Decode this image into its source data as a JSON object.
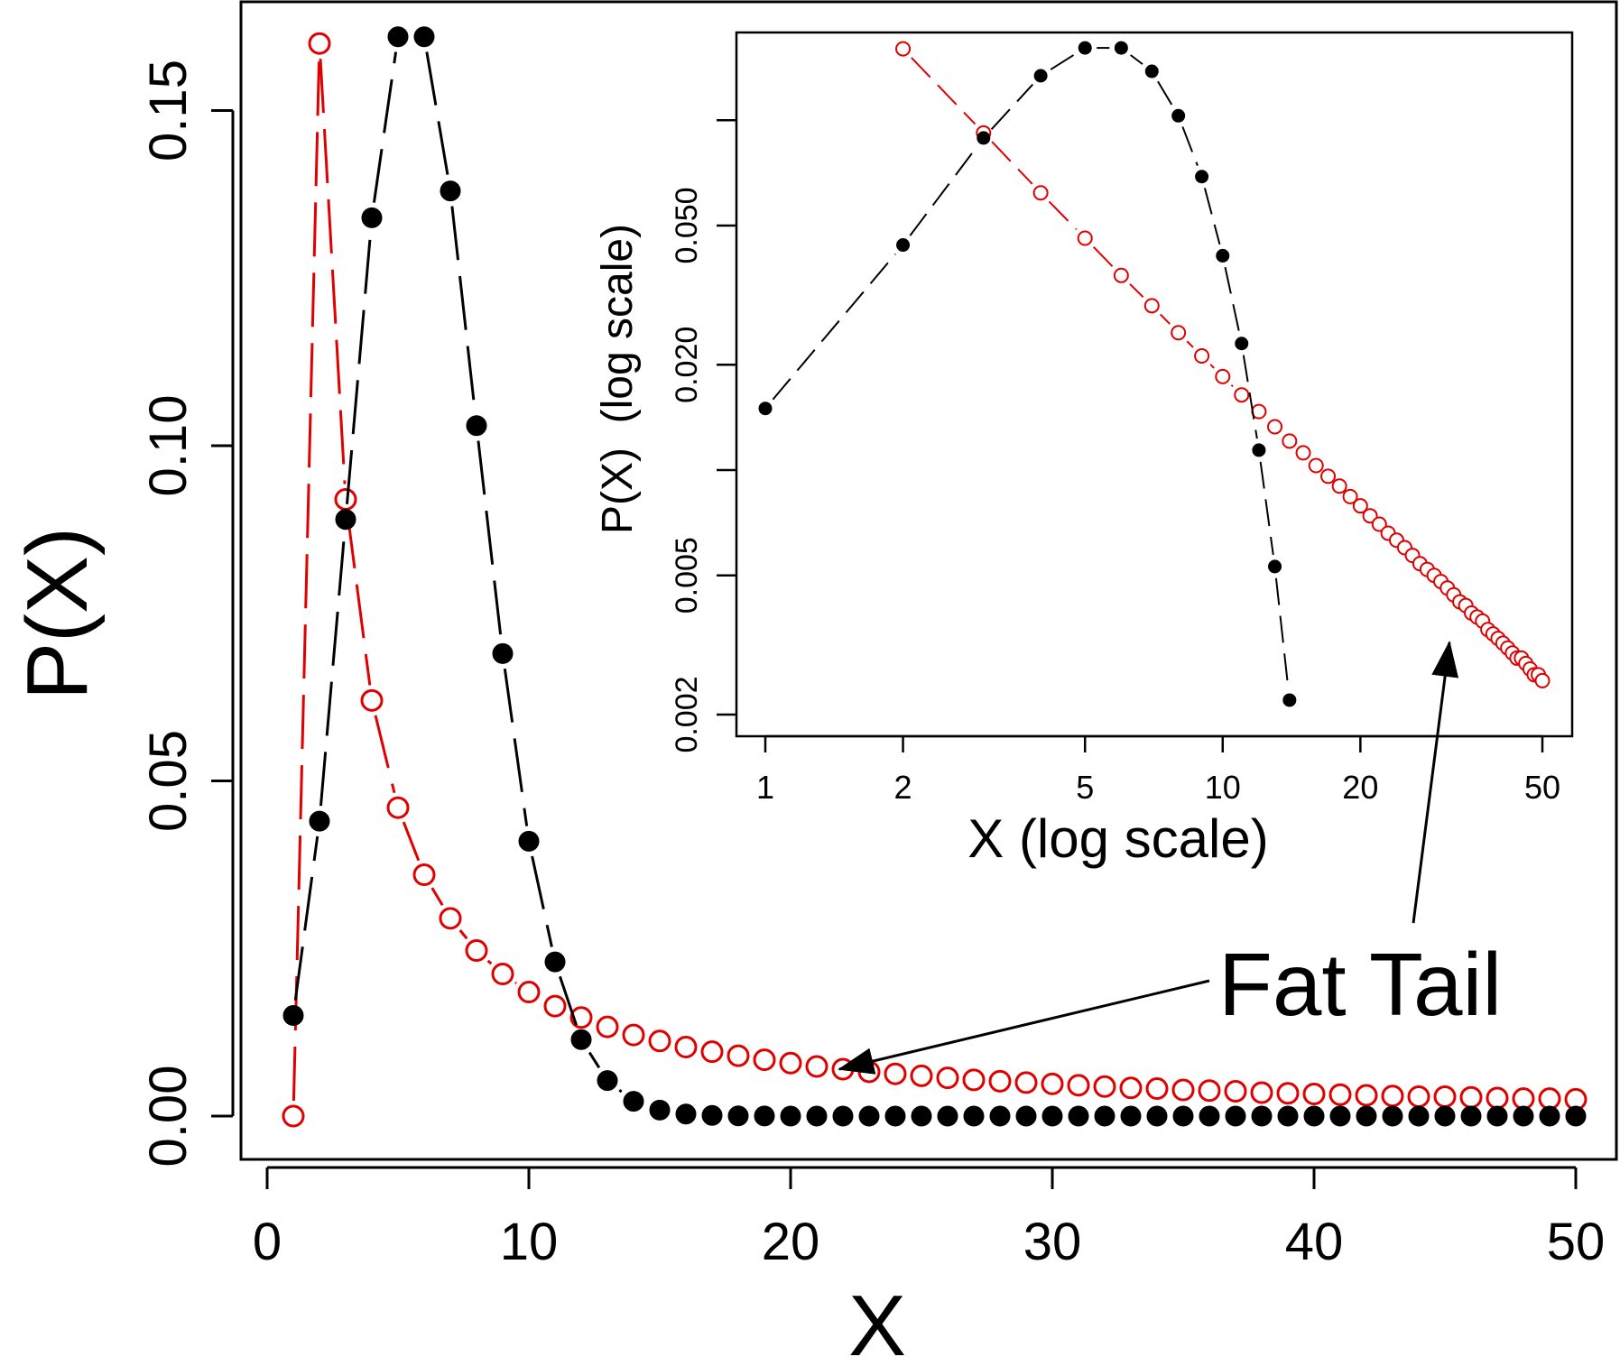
{
  "colors": {
    "black_series": "#000000",
    "red_series": "#e00000",
    "axis": "#000000",
    "background": "#ffffff"
  },
  "chart_data": [
    {
      "type": "line",
      "panel": "main",
      "xlabel": "X",
      "ylabel": "P(X)",
      "xlim": [
        0,
        50
      ],
      "ylim": [
        0,
        0.16
      ],
      "x_scale": "linear",
      "y_scale": "linear",
      "x_ticks": [
        0,
        10,
        20,
        30,
        40,
        50
      ],
      "x_tick_labels": [
        "0",
        "10",
        "20",
        "30",
        "40",
        "50"
      ],
      "y_ticks": [
        0.0,
        0.05,
        0.1,
        0.15
      ],
      "y_tick_labels": [
        "0.00",
        "0.05",
        "0.10",
        "0.15"
      ],
      "grid": false,
      "annotation": {
        "text": "Fat Tail",
        "arrow_targets": [
          "main-red-series-tail",
          "inset-red-series-tail"
        ]
      },
      "series": [
        {
          "marker": "filled-circle",
          "line": "dashed",
          "color": "#000000",
          "x": [
            1,
            2,
            3,
            4,
            5,
            6,
            7,
            8,
            9,
            10,
            11,
            12,
            13,
            14,
            15,
            16,
            17,
            18,
            19,
            20,
            21,
            22,
            23,
            24,
            25,
            26,
            27,
            28,
            29,
            30,
            31,
            32,
            33,
            34,
            35,
            36,
            37,
            38,
            39,
            40,
            41,
            42,
            43,
            44,
            45,
            46,
            47,
            48,
            49,
            50
          ],
          "y": [
            0.015,
            0.044,
            0.089,
            0.134,
            0.161,
            0.161,
            0.138,
            0.103,
            0.069,
            0.041,
            0.023,
            0.0114,
            0.0053,
            0.0022,
            0.0009,
            0.0003,
            0.0001,
            4e-05,
            1e-05,
            0,
            0,
            0,
            0,
            0,
            0,
            0,
            0,
            0,
            0,
            0,
            0,
            0,
            0,
            0,
            0,
            0,
            0,
            0,
            0,
            0,
            0,
            0,
            0,
            0,
            0,
            0,
            0,
            0,
            0,
            0
          ]
        },
        {
          "marker": "open-circle",
          "line": "dashed",
          "color": "#e00000",
          "x": [
            1,
            2,
            3,
            4,
            5,
            6,
            7,
            8,
            9,
            10,
            11,
            12,
            13,
            14,
            15,
            16,
            17,
            18,
            19,
            20,
            21,
            22,
            23,
            24,
            25,
            26,
            27,
            28,
            29,
            30,
            31,
            32,
            33,
            34,
            35,
            36,
            37,
            38,
            39,
            40,
            41,
            42,
            43,
            44,
            45,
            46,
            47,
            48,
            49,
            50
          ],
          "y": [
            0.0,
            0.16,
            0.092,
            0.062,
            0.046,
            0.036,
            0.0295,
            0.0247,
            0.0212,
            0.0185,
            0.0164,
            0.0147,
            0.0133,
            0.0121,
            0.0112,
            0.0103,
            0.0096,
            0.009,
            0.0084,
            0.0079,
            0.0074,
            0.007,
            0.0066,
            0.0063,
            0.006,
            0.0057,
            0.0054,
            0.0052,
            0.005,
            0.0048,
            0.0046,
            0.0044,
            0.0042,
            0.0041,
            0.0039,
            0.0038,
            0.0037,
            0.0035,
            0.0034,
            0.0033,
            0.0032,
            0.0031,
            0.003,
            0.0029,
            0.0029,
            0.0028,
            0.0027,
            0.0026,
            0.0026,
            0.0025
          ]
        }
      ]
    },
    {
      "type": "line",
      "panel": "inset",
      "xlabel": "X (log scale)",
      "ylabel": "P(X)  (log scale)",
      "x_scale": "log",
      "y_scale": "log",
      "xlim": [
        0.8,
        60
      ],
      "ylim": [
        0.0018,
        0.2
      ],
      "x_ticks": [
        1,
        2,
        5,
        10,
        20,
        50
      ],
      "x_tick_labels": [
        "1",
        "2",
        "5",
        "10",
        "20",
        "50"
      ],
      "y_ticks": [
        0.002,
        0.005,
        0.01,
        0.02,
        0.05,
        0.1
      ],
      "y_tick_labels": [
        "0.002",
        "0.005",
        "",
        "0.020",
        "0.050",
        ""
      ],
      "grid": false,
      "series": [
        {
          "marker": "filled-circle",
          "line": "dashed",
          "color": "#000000",
          "x": [
            1,
            2,
            3,
            4,
            5,
            6,
            7,
            8,
            9,
            10,
            11,
            12,
            13,
            14
          ],
          "y": [
            0.015,
            0.044,
            0.089,
            0.134,
            0.161,
            0.161,
            0.138,
            0.103,
            0.069,
            0.041,
            0.023,
            0.0114,
            0.0053,
            0.0022
          ]
        },
        {
          "marker": "open-circle",
          "line": "dashed",
          "color": "#e00000",
          "x": [
            2,
            3,
            4,
            5,
            6,
            7,
            8,
            9,
            10,
            11,
            12,
            13,
            14,
            15,
            16,
            17,
            18,
            19,
            20,
            21,
            22,
            23,
            24,
            25,
            26,
            27,
            28,
            29,
            30,
            31,
            32,
            33,
            34,
            35,
            36,
            37,
            38,
            39,
            40,
            41,
            42,
            43,
            44,
            45,
            46,
            47,
            48,
            49,
            50
          ],
          "y": [
            0.16,
            0.092,
            0.062,
            0.046,
            0.036,
            0.0295,
            0.0247,
            0.0212,
            0.0185,
            0.0164,
            0.0147,
            0.0133,
            0.0121,
            0.0112,
            0.0103,
            0.0096,
            0.009,
            0.0084,
            0.0079,
            0.0074,
            0.007,
            0.0066,
            0.0063,
            0.006,
            0.0057,
            0.0054,
            0.0052,
            0.005,
            0.0048,
            0.0046,
            0.0044,
            0.0042,
            0.0041,
            0.0039,
            0.0038,
            0.0037,
            0.0035,
            0.0034,
            0.0033,
            0.0032,
            0.0031,
            0.003,
            0.0029,
            0.0029,
            0.0028,
            0.0027,
            0.0026,
            0.0026,
            0.0025
          ]
        }
      ]
    }
  ]
}
